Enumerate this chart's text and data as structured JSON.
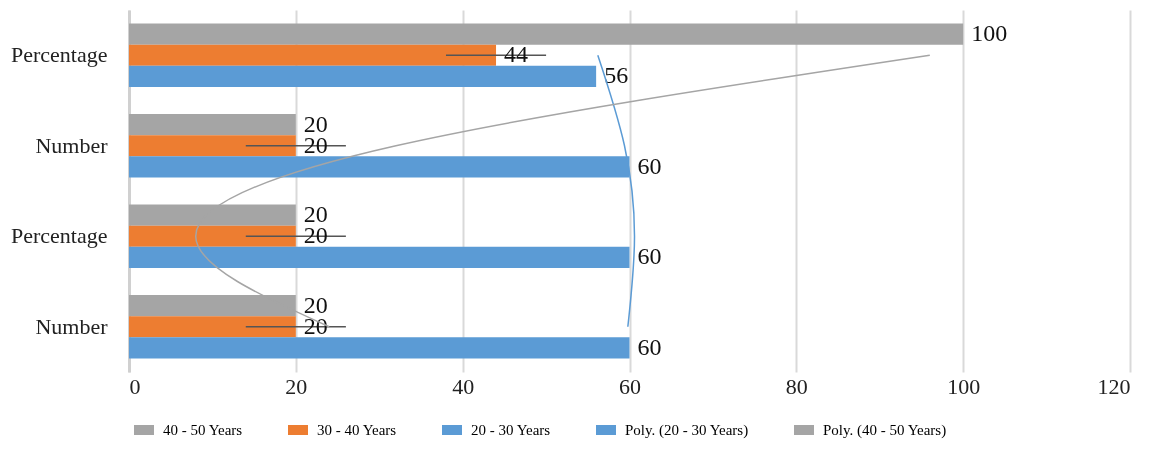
{
  "chart_data": {
    "type": "bar",
    "orientation": "horizontal",
    "categories": [
      "Percentage",
      "Number",
      "Percentage",
      "Number"
    ],
    "series": [
      {
        "name": "40 - 50 Years",
        "color": "#a5a5a5",
        "values": [
          100,
          20,
          20,
          20
        ],
        "value_labels": [
          "100",
          "20",
          "20",
          "20"
        ]
      },
      {
        "name": "30 - 40 Years",
        "color": "#ed7d31",
        "values": [
          44,
          20,
          20,
          20
        ],
        "errors": [
          6,
          6,
          6,
          6
        ],
        "value_labels": [
          "44",
          "20",
          "20",
          "20"
        ]
      },
      {
        "name": "20 - 30 Years",
        "color": "#5b9bd5",
        "values": [
          56,
          60,
          60,
          60
        ],
        "value_labels": [
          "56",
          "60",
          "60",
          "60"
        ]
      },
      {
        "name": "Poly. (20 - 30 Years)",
        "type": "line",
        "color": "#5b9bd5",
        "values": [
          56.2,
          59.4,
          60.6,
          59.8
        ]
      },
      {
        "name": "Poly. (40 - 50 Years)",
        "type": "line",
        "color": "#a5a5a5",
        "values": [
          96,
          32,
          8,
          24
        ]
      }
    ],
    "xlim": [
      0,
      120
    ],
    "xticks": [
      0,
      20,
      40,
      60,
      80,
      100,
      120
    ],
    "grid": "x",
    "legend": "bottom"
  }
}
